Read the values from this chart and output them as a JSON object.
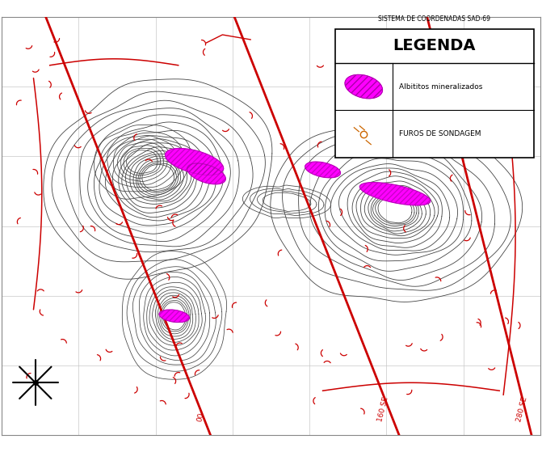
{
  "background_color": "#ffffff",
  "grid_color": "#c8c8c8",
  "contour_color": "#444444",
  "red_line_color": "#cc0000",
  "magenta_color": "#ff00ff",
  "title_text": "LEGENDA",
  "coord_system": "SISTEMA DE COORDENADAS SAD-69",
  "legend_item1": "Albititos mineralizados",
  "legend_item2": "FUROS DE SONDAGEM",
  "section_labels": [
    "00",
    "160 SE",
    "280 SE"
  ],
  "figsize": [
    6.71,
    5.59
  ],
  "dpi": 100
}
